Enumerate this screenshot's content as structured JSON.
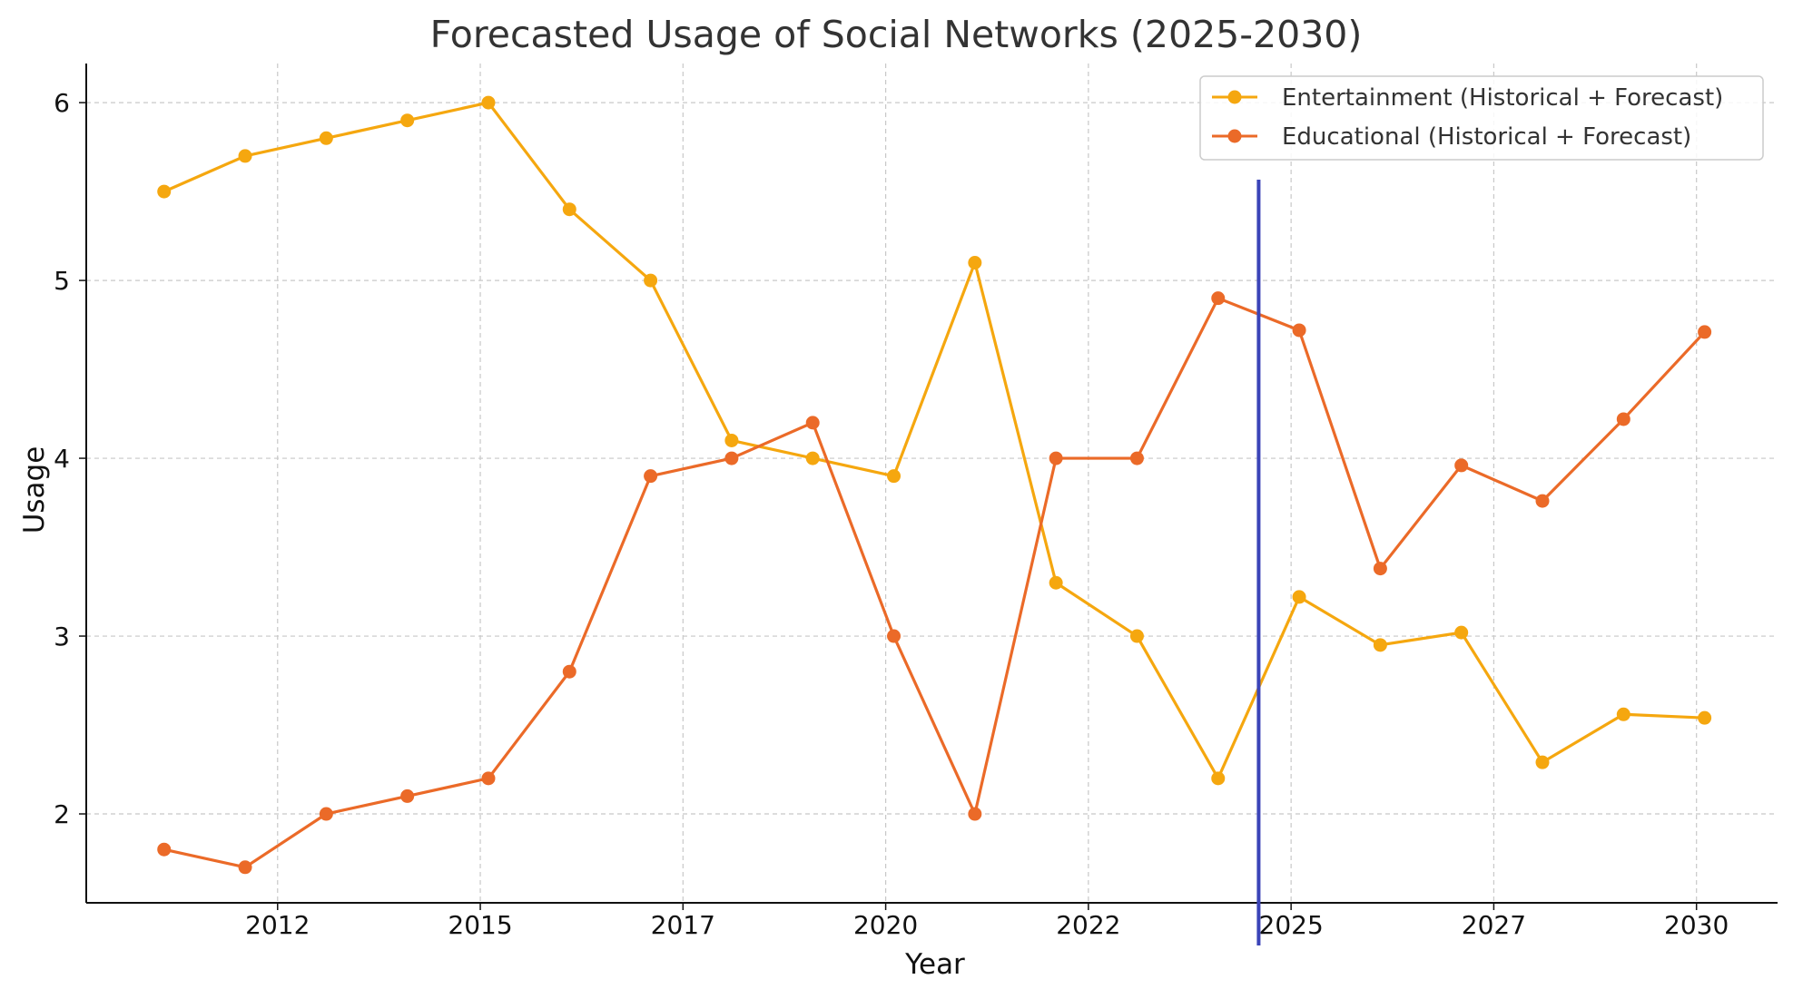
{
  "chart_data": {
    "type": "line",
    "title": "Forecasted Usage of Social Networks (2025-2030)",
    "xlabel": "Year",
    "ylabel": "Usage",
    "x": [
      2010.6,
      2011.6,
      2012.6,
      2013.6,
      2014.6,
      2015.6,
      2016.6,
      2017.6,
      2018.6,
      2019.6,
      2020.6,
      2021.6,
      2022.6,
      2023.6,
      2024.6,
      2025.6,
      2026.6,
      2027.6,
      2028.6,
      2029.6
    ],
    "series": [
      {
        "name": "Entertainment (Historical + Forecast)",
        "color": "#F5A70F",
        "values": [
          5.5,
          5.7,
          5.8,
          5.9,
          6.0,
          5.4,
          5.0,
          4.1,
          4.0,
          3.9,
          5.1,
          3.3,
          3.0,
          2.2,
          3.22,
          2.95,
          3.02,
          2.29,
          2.56,
          2.54
        ]
      },
      {
        "name": "Educational (Historical + Forecast)",
        "color": "#EB6A28",
        "values": [
          1.8,
          1.7,
          2.0,
          2.1,
          2.2,
          2.8,
          3.9,
          4.0,
          4.2,
          3.0,
          2.0,
          4.0,
          4.0,
          4.9,
          4.72,
          3.38,
          3.96,
          3.76,
          4.22,
          4.71
        ]
      }
    ],
    "xticks": [
      {
        "value": 2012,
        "label": "2012"
      },
      {
        "value": 2014.5,
        "label": "2015"
      },
      {
        "value": 2017,
        "label": "2017"
      },
      {
        "value": 2019.5,
        "label": "2020"
      },
      {
        "value": 2022,
        "label": "2022"
      },
      {
        "value": 2024.5,
        "label": "2025"
      },
      {
        "value": 2027,
        "label": "2027"
      },
      {
        "value": 2029.5,
        "label": "2030"
      }
    ],
    "yticks": [
      2,
      3,
      4,
      5,
      6
    ],
    "xlim": [
      2009.64,
      2030.5
    ],
    "ylim": [
      1.5,
      6.22
    ],
    "vline": {
      "x": 2024.1,
      "color": "#3B44B8"
    },
    "grid": true,
    "legend_position": "top-right"
  }
}
